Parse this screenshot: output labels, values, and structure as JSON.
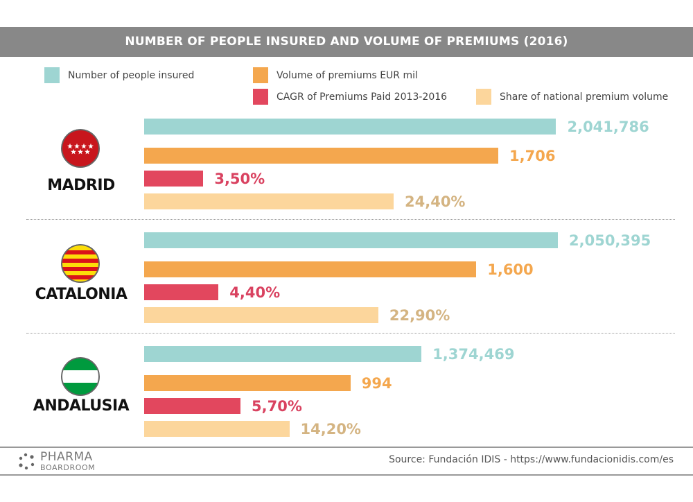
{
  "title": "NUMBER OF PEOPLE INSURED AND VOLUME OF PREMIUMS (2016)",
  "legend": [
    {
      "key": "insured",
      "label": "Number of people insured",
      "color": "#9ed5d2"
    },
    {
      "key": "premiums",
      "label": "Volume of premiums EUR mil",
      "color": "#f4a74e"
    },
    {
      "key": "cagr",
      "label": "CAGR of Premiums Paid 2013-2016",
      "color": "#e2475e"
    },
    {
      "key": "share",
      "label": "Share of national premium volume",
      "color": "#fcd69c"
    }
  ],
  "label_colors": {
    "insured": "#9ed5d2",
    "premiums": "#f4a74e",
    "cagr": "#d94260",
    "share": "#d4b482"
  },
  "chart_data": {
    "type": "bar",
    "orientation": "horizontal",
    "title": "NUMBER OF PEOPLE INSURED AND VOLUME OF PREMIUMS (2016)",
    "categories": [
      "MADRID",
      "CATALONIA",
      "ANDALUSIA"
    ],
    "series": [
      {
        "name": "Number of people insured",
        "key": "insured",
        "values": [
          2041786,
          2050395,
          1374469
        ],
        "labels": [
          "2,041,786",
          "2,050,395",
          "1,374,469"
        ]
      },
      {
        "name": "Volume of premiums EUR mil",
        "key": "premiums",
        "values": [
          1706,
          1600,
          994
        ],
        "labels": [
          "1,706",
          "1,600",
          "994"
        ]
      },
      {
        "name": "CAGR of Premiums Paid 2013-2016",
        "key": "cagr",
        "values": [
          3.5,
          4.4,
          5.7
        ],
        "labels": [
          "3,50%",
          "4,40%",
          "5,70%"
        ]
      },
      {
        "name": "Share of national premium volume",
        "key": "share",
        "values": [
          24.4,
          22.9,
          14.2
        ],
        "labels": [
          "24,40%",
          "22,90%",
          "14,20%"
        ]
      }
    ],
    "legend_position": "top",
    "grid": false
  },
  "regions": [
    {
      "name": "MADRID",
      "flag": "madrid-flag"
    },
    {
      "name": "CATALONIA",
      "flag": "catalonia-flag"
    },
    {
      "name": "ANDALUSIA",
      "flag": "andalusia-flag"
    }
  ],
  "footer": {
    "logo_top": "PHARMA",
    "logo_bottom": "BOARDROOM",
    "source": "Source:  Fundación IDIS - https://www.fundacionidis.com/es"
  }
}
